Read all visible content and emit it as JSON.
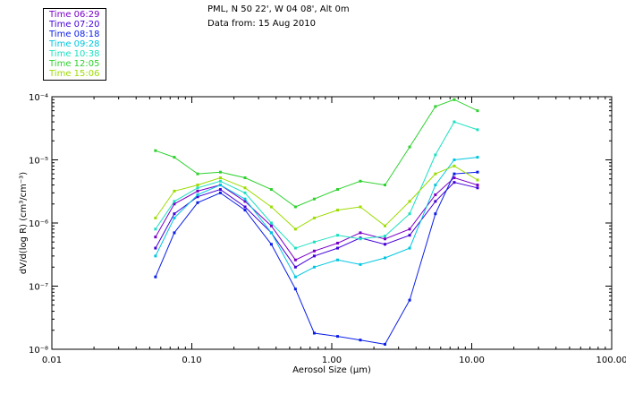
{
  "header": {
    "location": "PML, N 50 22', W 04 08', Alt 0m",
    "data_from": "Data from: 15 Aug 2010"
  },
  "legend": [
    {
      "label": "Time 06:29",
      "color": "#7a00c8"
    },
    {
      "label": "Time 07:20",
      "color": "#4400d8"
    },
    {
      "label": "Time 08:18",
      "color": "#0a1ee6"
    },
    {
      "label": "Time 09:28",
      "color": "#00c6e0"
    },
    {
      "label": "Time 10:38",
      "color": "#1ce0c0"
    },
    {
      "label": "Time 12:05",
      "color": "#2ed12e"
    },
    {
      "label": "Time 15:06",
      "color": "#9cdc00"
    }
  ],
  "colors": {
    "axis": "#000000",
    "background": "#ffffff"
  },
  "chart_data": {
    "type": "line",
    "title": "PML, N 50 22', W 04 08', Alt 0m",
    "subtitle": "Data from: 15 Aug 2010",
    "xlabel": "Aerosol Size (μm)",
    "ylabel": "dV/d(log R) (cm³/cm⁻³)",
    "xscale": "log",
    "yscale": "log",
    "xlim": [
      0.01,
      100.0
    ],
    "ylim": [
      1e-08,
      0.0001
    ],
    "x_tick_labels": [
      {
        "value": 0.01,
        "label": "0.01"
      },
      {
        "value": 0.1,
        "label": "0.10"
      },
      {
        "value": 1.0,
        "label": "1.00"
      },
      {
        "value": 10.0,
        "label": "10.00"
      },
      {
        "value": 100.0,
        "label": "100.00"
      }
    ],
    "y_tick_labels": [
      {
        "value": 1e-08,
        "label": "10⁻⁸"
      },
      {
        "value": 1e-07,
        "label": "10⁻⁷"
      },
      {
        "value": 1e-06,
        "label": "10⁻⁶"
      },
      {
        "value": 1e-05,
        "label": "10⁻⁵"
      },
      {
        "value": 0.0001,
        "label": "10⁻⁴"
      }
    ],
    "x": [
      0.055,
      0.075,
      0.11,
      0.16,
      0.24,
      0.37,
      0.55,
      0.75,
      1.1,
      1.6,
      2.4,
      3.6,
      5.5,
      7.5,
      11.0
    ],
    "series": [
      {
        "name": "Time 06:29",
        "color": "#7a00c8",
        "values": [
          6e-07,
          2e-06,
          3.2e-06,
          4e-06,
          2.2e-06,
          9e-07,
          2.6e-07,
          3.6e-07,
          4.8e-07,
          7e-07,
          5.6e-07,
          8e-07,
          2.8e-06,
          5.2e-06,
          4e-06
        ]
      },
      {
        "name": "Time 07:20",
        "color": "#4400d8",
        "values": [
          4e-07,
          1.4e-06,
          2.6e-06,
          3.4e-06,
          1.8e-06,
          7e-07,
          2e-07,
          3e-07,
          4e-07,
          5.8e-07,
          4.6e-07,
          6.4e-07,
          2.2e-06,
          4.4e-06,
          3.6e-06
        ]
      },
      {
        "name": "Time 08:18",
        "color": "#0a1ee6",
        "values": [
          1.4e-07,
          7e-07,
          2.1e-06,
          3e-06,
          1.6e-06,
          4.6e-07,
          9e-08,
          1.8e-08,
          1.6e-08,
          1.4e-08,
          1.2e-08,
          6e-08,
          1.4e-06,
          6e-06,
          6.4e-06
        ]
      },
      {
        "name": "Time 09:28",
        "color": "#00c6e0",
        "values": [
          3e-07,
          1.2e-06,
          2.8e-06,
          4e-06,
          2.4e-06,
          7e-07,
          1.4e-07,
          2e-07,
          2.6e-07,
          2.2e-07,
          2.8e-07,
          4e-07,
          4e-06,
          1e-05,
          1.1e-05
        ]
      },
      {
        "name": "Time 10:38",
        "color": "#1ce0c0",
        "values": [
          8e-07,
          2.2e-06,
          3.6e-06,
          4.6e-06,
          3e-06,
          1e-06,
          4e-07,
          5e-07,
          6.4e-07,
          5.6e-07,
          6.2e-07,
          1.4e-06,
          1.2e-05,
          4e-05,
          3e-05
        ]
      },
      {
        "name": "Time 12:05",
        "color": "#2ed12e",
        "values": [
          1.4e-05,
          1.1e-05,
          6e-06,
          6.4e-06,
          5.2e-06,
          3.4e-06,
          1.8e-06,
          2.4e-06,
          3.4e-06,
          4.6e-06,
          4e-06,
          1.6e-05,
          7e-05,
          9e-05,
          6e-05
        ]
      },
      {
        "name": "Time 15:06",
        "color": "#9cdc00",
        "values": [
          1.2e-06,
          3.2e-06,
          4e-06,
          5.2e-06,
          3.6e-06,
          1.8e-06,
          8e-07,
          1.2e-06,
          1.6e-06,
          1.8e-06,
          9e-07,
          2.2e-06,
          6e-06,
          8e-06,
          4.8e-06
        ]
      }
    ]
  }
}
